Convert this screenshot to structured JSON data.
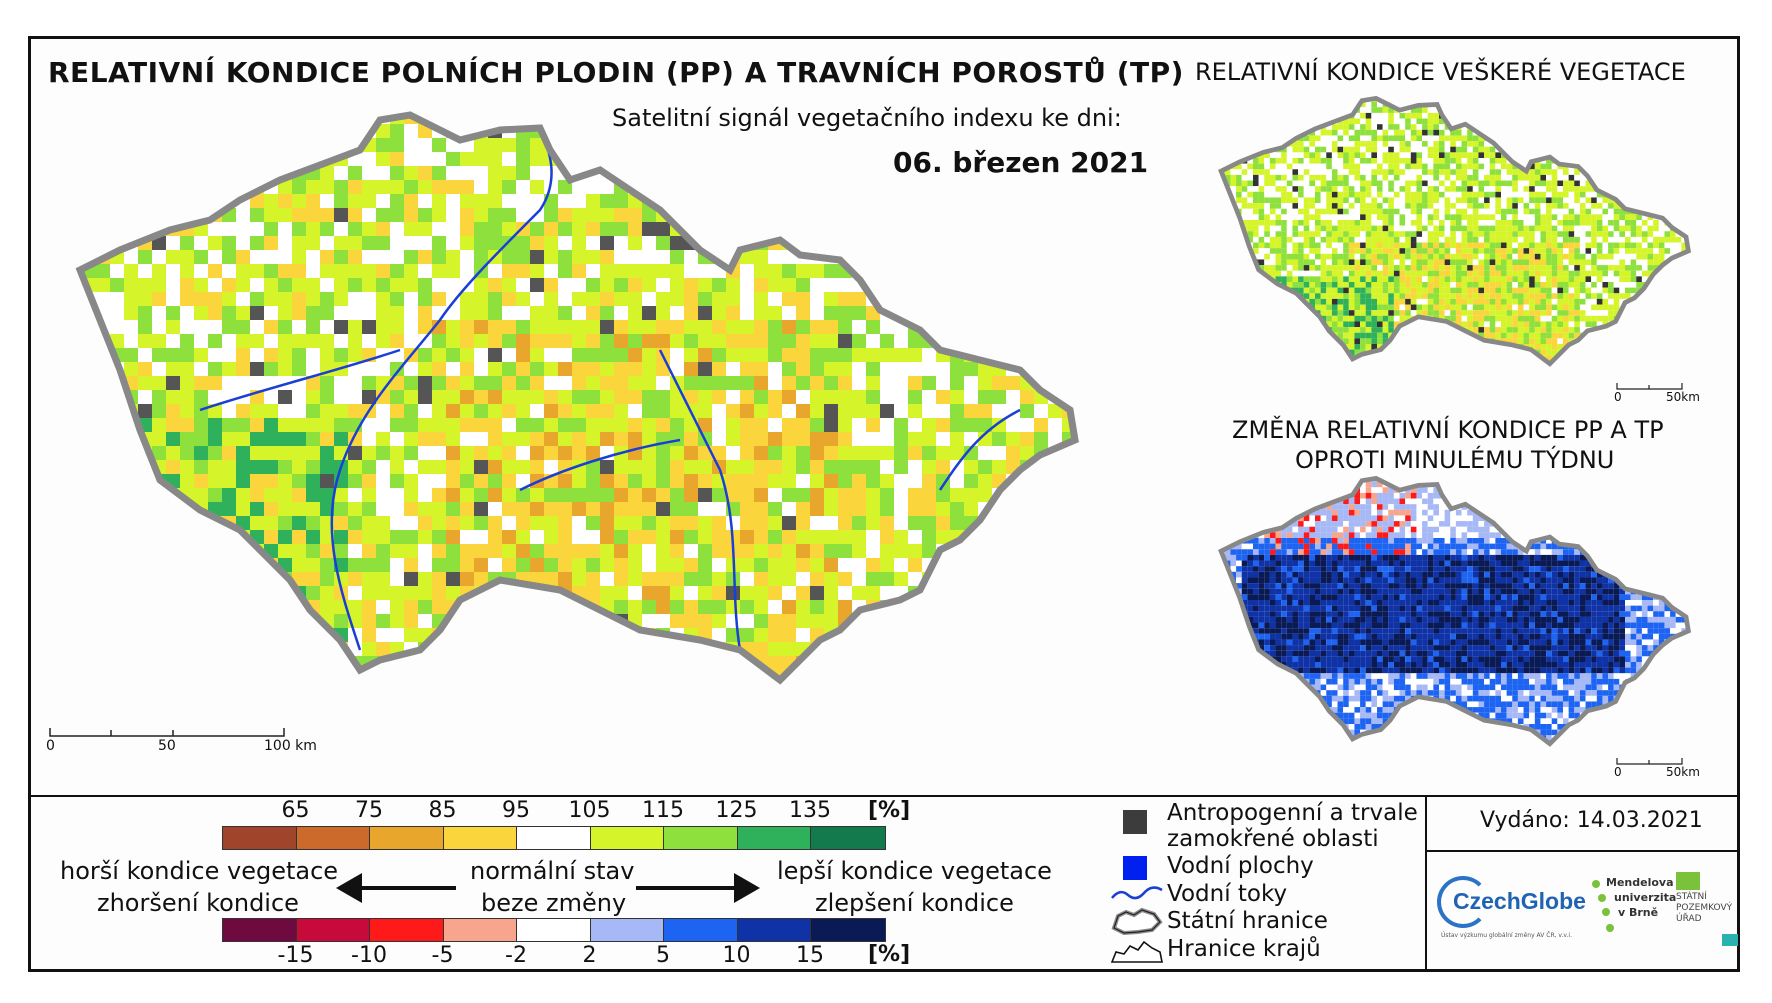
{
  "title": "RELATIVNÍ KONDICE POLNÍCH PLODIN (PP) A TRAVNÍCH POROSTŮ (TP)",
  "subtitle": "Satelitní signál vegetačního indexu ke dni:",
  "date": "06. březen 2021",
  "right_top_title": "RELATIVNÍ KONDICE VEŠKERÉ VEGETACE",
  "right_bottom_title_line1": "ZMĚNA RELATIVNÍ KONDICE PP A TP",
  "right_bottom_title_line2": "OPROTI MINULÉMU TÝDNU",
  "main_scale": {
    "zero": "0",
    "mid": "50",
    "end": "100 km"
  },
  "small_scale": {
    "zero": "0",
    "end": "50km"
  },
  "condition_legend": {
    "ticks": [
      "65",
      "75",
      "85",
      "95",
      "105",
      "115",
      "125",
      "135"
    ],
    "unit": "[%]",
    "colors": [
      "#a0442c",
      "#cc6a2c",
      "#e8a62c",
      "#fad53c",
      "#ffffff",
      "#d5f52a",
      "#8ee03c",
      "#2fb15b",
      "#127a4c"
    ]
  },
  "change_legend": {
    "ticks": [
      "-15",
      "-10",
      "-5",
      "-2",
      "2",
      "5",
      "10",
      "15"
    ],
    "unit": "[%]",
    "colors": [
      "#6e0a40",
      "#c80a3a",
      "#ff1a1a",
      "#f7a58c",
      "#ffffff",
      "#a6b8f5",
      "#1e64f2",
      "#0f33a6",
      "#0a1a55"
    ]
  },
  "scale_labels": {
    "worse_veg": "horší kondice vegetace",
    "worse_change": "zhoršení kondice",
    "normal": "normální stav",
    "no_change": "beze změny",
    "better_veg": "lepší kondice vegetace",
    "better_change": "zlepšení kondice"
  },
  "map_legend": {
    "anthropogenic": "Antropogenní a trvale",
    "anthropogenic2": "zamokřené oblasti",
    "water_bodies": "Vodní plochy",
    "rivers": "Vodní toky",
    "state_border": "Státní hranice",
    "region_border": "Hranice krajů"
  },
  "issued": "Vydáno: 14.03.2021",
  "logos": {
    "czechglobe": "CzechGlobe",
    "czechglobe_small": "Ústav výzkumu globální změny AV ČR, v.v.i.",
    "mendel": [
      "Mendelova",
      "univerzita",
      "v Brně"
    ],
    "spu": [
      "STÁTNÍ",
      "POZEMKOVÝ",
      "ÚŘAD"
    ]
  },
  "palette": {
    "main_map": [
      "#ffffff",
      "#ffffff",
      "#d5f52a",
      "#d5f52a",
      "#8ee03c",
      "#fad53c",
      "#e8a62c",
      "#2fb15b",
      "#555555"
    ],
    "right_top": [
      "#ffffff",
      "#d5f52a",
      "#8ee03c",
      "#fad53c",
      "#2fb15b",
      "#333333"
    ],
    "right_bottom": [
      "#ffffff",
      "#a6b8f5",
      "#1e64f2",
      "#1e64f2",
      "#0f33a6",
      "#0a1a55",
      "#f7a58c",
      "#ff1a1a"
    ],
    "border": "#888888",
    "river": "#1a3fd6"
  }
}
